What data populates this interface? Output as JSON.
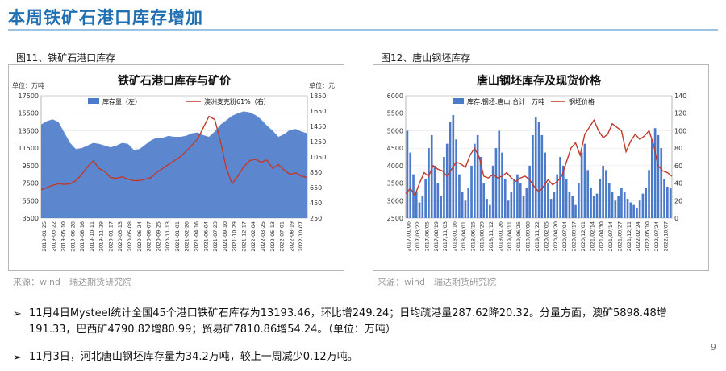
{
  "page": {
    "title": "本周铁矿石港口库存增加",
    "page_number": "9"
  },
  "figures": [
    {
      "caption": "图11、铁矿石港口库存",
      "source": "来源：wind　瑞达期货研究院"
    },
    {
      "caption": "图12、唐山钢坯库存",
      "source": "来源：wind　瑞达期货研究院"
    }
  ],
  "bullets": [
    {
      "line1": "11月4日Mysteel统计全国45个港口铁矿石库存为13193.46，环比增249.24；日均疏港量287.62降20.32。分量方面，澳矿5898.48增",
      "line2": "191.33，巴西矿4790.82增80.99；贸易矿7810.86增54.24。（单位：万吨）"
    },
    {
      "line1": "11月3日，河北唐山钢坯库存量为34.2万吨，较上一周减少0.12万吨。",
      "line2": ""
    }
  ],
  "chart_data": [
    {
      "type": "area",
      "title": "铁矿石港口库存与矿价",
      "left_unit": "单位：万吨",
      "right_unit": "单位：元",
      "legend_placement": "top",
      "ylim_left": [
        3500,
        17500
      ],
      "yticks_left": [
        "17500",
        "15500",
        "13500",
        "11500",
        "9500",
        "7500",
        "5500",
        "3500"
      ],
      "ylim_right": [
        250,
        1850
      ],
      "yticks_right": [
        "1850",
        "1650",
        "1450",
        "1250",
        "1050",
        "850",
        "650",
        "450",
        "250"
      ],
      "x_labels": [
        "2019-01-25",
        "2019-03-22",
        "2019-05-10",
        "2019-06-28",
        "2019-08-16",
        "2019-10-11",
        "2019-11-29",
        "2020-01-17",
        "2020-03-13",
        "2020-05-08",
        "2020-06-24",
        "2020-08-07",
        "2020-09-25",
        "2020-11-13",
        "2021-01-01",
        "2021-02-26",
        "2021-04-16",
        "2021-06-04",
        "2021-07-23",
        "2021-09-10",
        "2021-10-29",
        "2021-12-17",
        "2022-02-04",
        "2022-03-25",
        "2022-05-13",
        "2022-07-01",
        "2022-08-19",
        "2022-10-07"
      ],
      "series": [
        {
          "name": "库存量（左）",
          "axis": "left",
          "color": "#4a7ac9",
          "values": [
            14200,
            14600,
            14800,
            14500,
            13300,
            12100,
            11400,
            11500,
            11800,
            12100,
            12000,
            11800,
            11600,
            11800,
            12100,
            12000,
            11300,
            11400,
            11900,
            12400,
            12700,
            12700,
            12900,
            12800,
            12800,
            12900,
            13200,
            13300,
            13000,
            12800,
            13400,
            14200,
            14700,
            15200,
            15500,
            15700,
            15600,
            15300,
            14800,
            14100,
            13500,
            12800,
            13100,
            13600,
            13700,
            13400,
            13200
          ]
        },
        {
          "name": "澳洲麦克粉61%（右）",
          "axis": "right",
          "color": "#c0392b",
          "values": [
            620,
            650,
            680,
            700,
            690,
            700,
            740,
            820,
            920,
            1000,
            900,
            860,
            780,
            770,
            790,
            760,
            740,
            740,
            760,
            780,
            850,
            900,
            950,
            1000,
            1050,
            1120,
            1200,
            1280,
            1430,
            1580,
            1540,
            1250,
            900,
            700,
            800,
            920,
            1000,
            1020,
            980,
            1010,
            900,
            950,
            880,
            820,
            840,
            800,
            780
          ]
        }
      ]
    },
    {
      "type": "bar",
      "title": "唐山钢坯库存及现货价格",
      "legend_placement": "top",
      "ylim_left": [
        2500,
        6000
      ],
      "yticks_left": [
        "6000",
        "5500",
        "5000",
        "4500",
        "4000",
        "3500",
        "3000",
        "2500"
      ],
      "ylim_right": [
        0,
        140
      ],
      "yticks_right": [
        "140",
        "120",
        "100",
        "80",
        "60",
        "40",
        "20",
        "0"
      ],
      "x_labels": [
        "2017/01/06",
        "2017/03/22",
        "2017/06/05",
        "2017/08/19",
        "2017/11/03",
        "2018/01/16",
        "2018/04/01",
        "2018/06/15",
        "2018/08/29",
        "2018/11/12",
        "2019/01/26",
        "2019/04/11",
        "2019/06/25",
        "2019/09/08",
        "2019/11/22",
        "2020/02/05",
        "2020/04/20",
        "2020/07/04",
        "2020/09/17",
        "2020/12/01",
        "2021/02/14",
        "2021/04/30",
        "2021/07/14",
        "2021/09/27",
        "2021/12/11",
        "2022/02/24",
        "2022/05/10",
        "2022/07/24",
        "2022/10/07"
      ],
      "series": [
        {
          "name": "库存:钢坯:唐山:合计　万吨",
          "axis": "right",
          "color": "#4a7ac9",
          "values": [
            100,
            75,
            50,
            30,
            18,
            25,
            45,
            80,
            95,
            60,
            40,
            25,
            70,
            85,
            110,
            118,
            90,
            50,
            30,
            20,
            35,
            60,
            85,
            95,
            70,
            40,
            22,
            15,
            60,
            80,
            100,
            75,
            45,
            20,
            30,
            45,
            50,
            40,
            25,
            35,
            60,
            95,
            115,
            110,
            95,
            75,
            40,
            22,
            30,
            50,
            70,
            60,
            45,
            30,
            25,
            15,
            40,
            75,
            85,
            55,
            35,
            25,
            28,
            45,
            60,
            55,
            40,
            30,
            20,
            25,
            35,
            30,
            22,
            18,
            15,
            12,
            20,
            28,
            35,
            55,
            90,
            103,
            95,
            80,
            45,
            36,
            34
          ]
        },
        {
          "name": "钢坯价格",
          "axis": "left",
          "color": "#c0392b",
          "values": [
            3200,
            3350,
            3150,
            3500,
            3800,
            3700,
            4000,
            3900,
            3850,
            3700,
            3900,
            4100,
            4050,
            3950,
            4300,
            4500,
            4250,
            3700,
            3650,
            3750,
            3650,
            3700,
            3800,
            3650,
            3550,
            3650,
            3700,
            3600,
            3400,
            3250,
            3400,
            3600,
            3450,
            3550,
            3700,
            4100,
            4500,
            4650,
            4300,
            4900,
            5100,
            5300,
            5000,
            4800,
            4900,
            5200,
            5100,
            5000,
            4400,
            4700,
            4900,
            4750,
            4850,
            5000,
            4600,
            4000,
            3850,
            3800,
            3700
          ]
        }
      ]
    }
  ]
}
